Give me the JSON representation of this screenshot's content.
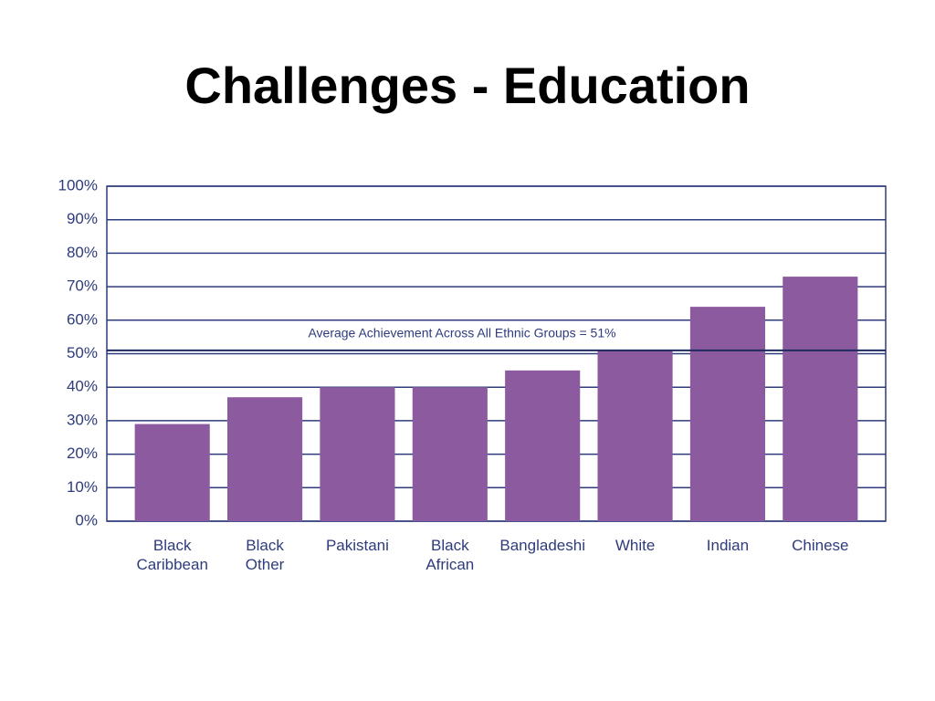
{
  "chart_data": {
    "type": "bar",
    "title": "Challenges - Education",
    "categories": [
      "Black Caribbean",
      "Black Other",
      "Pakistani",
      "Black African",
      "Bangladeshi",
      "White",
      "Indian",
      "Chinese"
    ],
    "values": [
      29,
      37,
      40,
      40,
      45,
      51,
      64,
      73
    ],
    "color": "#8c5a9e",
    "ylim": [
      0,
      100
    ],
    "yticks": [
      {
        "value": 0,
        "label": "0%"
      },
      {
        "value": 10,
        "label": "10%"
      },
      {
        "value": 20,
        "label": "20%"
      },
      {
        "value": 30,
        "label": "30%"
      },
      {
        "value": 40,
        "label": "40%"
      },
      {
        "value": 50,
        "label": "50%"
      },
      {
        "value": 60,
        "label": "60%"
      },
      {
        "value": 70,
        "label": "70%"
      },
      {
        "value": 80,
        "label": "80%"
      },
      {
        "value": 90,
        "label": "90%"
      },
      {
        "value": 100,
        "label": "100%"
      }
    ],
    "grid": true,
    "reference_line": {
      "value": 51,
      "label": "Average Achievement Across All Ethnic Groups = 51%"
    }
  }
}
